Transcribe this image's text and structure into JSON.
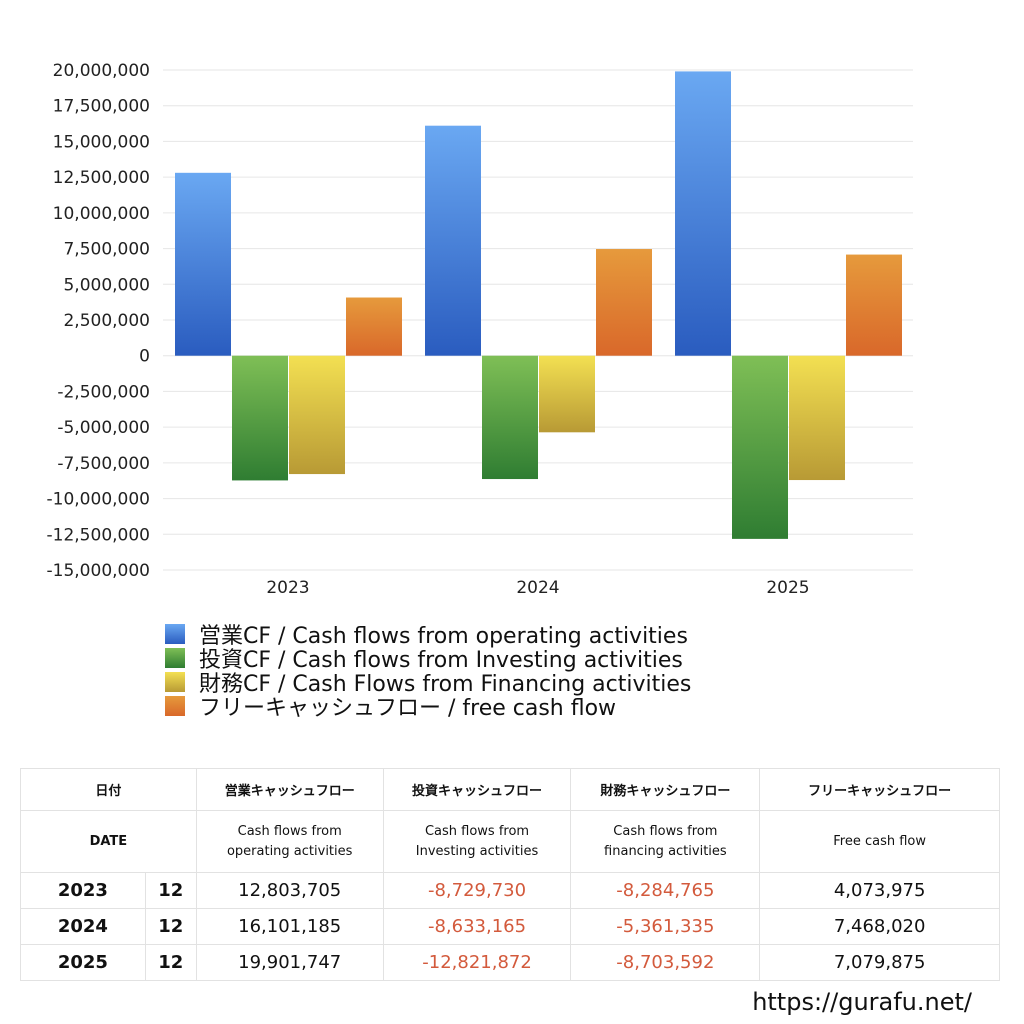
{
  "chart_data": {
    "type": "bar",
    "categories": [
      "2023",
      "2024",
      "2025"
    ],
    "ylim": [
      -15000000,
      20000000
    ],
    "yticks": [
      20000000,
      17500000,
      15000000,
      12500000,
      10000000,
      7500000,
      5000000,
      2500000,
      0,
      -2500000,
      -5000000,
      -7500000,
      -10000000,
      -12500000,
      -15000000
    ],
    "ytick_labels": [
      "20,000,000",
      "17,500,000",
      "15,000,000",
      "12,500,000",
      "10,000,000",
      "7,500,000",
      "5,000,000",
      "2,500,000",
      "0",
      "-2,500,000",
      "-5,000,000",
      "-7,500,000",
      "-10,000,000",
      "-12,500,000",
      "-15,000,000"
    ],
    "grid": true,
    "legend_position": "bottom-left",
    "series": [
      {
        "name": "営業CF / Cash flows from operating activities",
        "color_top": "#6aa8f2",
        "color_bottom": "#2a5cbf",
        "values": [
          12803705,
          16101185,
          19901747
        ]
      },
      {
        "name": "投資CF / Cash flows from Investing activities",
        "color_top": "#7fbf56",
        "color_bottom": "#2f7d32",
        "values": [
          -8729730,
          -8633165,
          -12821872
        ]
      },
      {
        "name": "財務CF / Cash Flows from Financing activities",
        "color_top": "#f3e052",
        "color_bottom": "#b89a35",
        "values": [
          -8284765,
          -5361335,
          -8703592
        ]
      },
      {
        "name": "フリーキャッシュフロー / free cash flow",
        "color_top": "#e69a3c",
        "color_bottom": "#d9682a",
        "values": [
          4073975,
          7468020,
          7079875
        ]
      }
    ]
  },
  "table": {
    "header1": {
      "date": "日付",
      "operating": "営業キャッシュフロー",
      "investing": "投資キャッシュフロー",
      "financing": "財務キャッシュフロー",
      "free": "フリーキャッシュフロー"
    },
    "header2": {
      "date": "DATE",
      "operating_1": "Cash flows from",
      "operating_2": "operating activities",
      "investing_1": "Cash flows from",
      "investing_2": "Investing activities",
      "financing_1": "Cash flows from",
      "financing_2": "financing activities",
      "free": "Free cash flow"
    },
    "rows": [
      {
        "year": "2023",
        "month": "12",
        "operating": "12,803,705",
        "investing": "-8,729,730",
        "financing": "-8,284,765",
        "free": "4,073,975"
      },
      {
        "year": "2024",
        "month": "12",
        "operating": "16,101,185",
        "investing": "-8,633,165",
        "financing": "-5,361,335",
        "free": "7,468,020"
      },
      {
        "year": "2025",
        "month": "12",
        "operating": "19,901,747",
        "investing": "-12,821,872",
        "financing": "-8,703,592",
        "free": "7,079,875"
      }
    ]
  },
  "site_url": "https://gurafu.net/"
}
